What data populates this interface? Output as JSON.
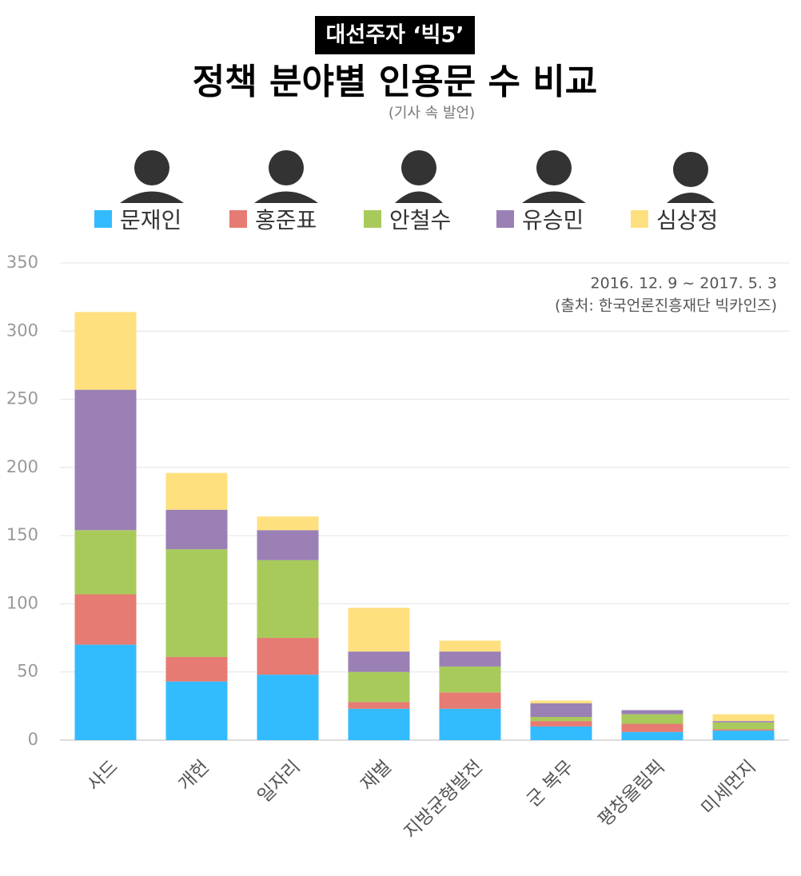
{
  "chart_data": {
    "type": "stacked_bar",
    "badge": "대선주자 ‘빅5’",
    "title": "정책 분야별 인용문 수 비교",
    "subtitle": "(기사 속 발언)",
    "annotations": [
      "2016. 12. 9 ~ 2017. 5. 3",
      "(출처: 한국언론진흥재단 빅카인즈)"
    ],
    "categories": [
      "사드",
      "개헌",
      "일자리",
      "재벌",
      "지방균형발전",
      "군 복무",
      "평창올림픽",
      "미세먼지"
    ],
    "series": [
      {
        "name": "문재인",
        "color": "#33bbff",
        "values": [
          70,
          43,
          48,
          23,
          23,
          10,
          6,
          7
        ]
      },
      {
        "name": "홍준표",
        "color": "#e57b72",
        "values": [
          37,
          18,
          27,
          5,
          12,
          4,
          6,
          1
        ]
      },
      {
        "name": "안철수",
        "color": "#a8ca5b",
        "values": [
          47,
          79,
          57,
          22,
          19,
          3,
          7,
          5
        ]
      },
      {
        "name": "유승민",
        "color": "#9a80b5",
        "values": [
          103,
          29,
          22,
          15,
          11,
          10,
          3,
          1
        ]
      },
      {
        "name": "심상정",
        "color": "#ffe07e",
        "values": [
          57,
          27,
          10,
          32,
          8,
          2,
          0,
          5
        ]
      }
    ],
    "ylim": [
      0,
      350
    ],
    "yticks": [
      0,
      50,
      100,
      150,
      200,
      250,
      300,
      350
    ],
    "grid": true
  }
}
